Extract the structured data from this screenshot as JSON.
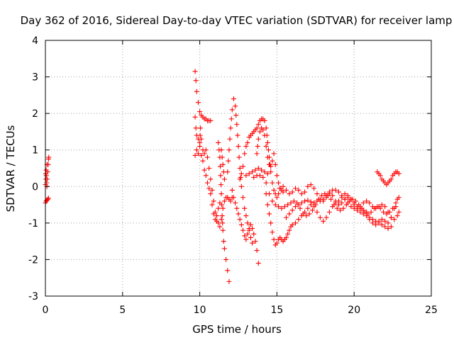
{
  "chart_data": {
    "type": "scatter",
    "title": "Day 362 of 2016, Sidereal Day-to-day VTEC variation (SDTVAR) for receiver lamp",
    "xlabel": "GPS time / hours",
    "ylabel": "SDTVAR / TECUs",
    "xlim": [
      0,
      25
    ],
    "ylim": [
      -3,
      4
    ],
    "xticks": [
      "0",
      "5",
      "10",
      "15",
      "20",
      "25"
    ],
    "yticks": [
      "-3",
      "-2",
      "-1",
      "0",
      "1",
      "2",
      "3",
      "4"
    ],
    "grid": true,
    "marker": "plus",
    "color": "#ff0000",
    "segments": [
      [
        [
          0.0,
          -0.45
        ],
        [
          0.05,
          -0.4
        ],
        [
          0.1,
          -0.38
        ],
        [
          0.15,
          -0.35
        ],
        [
          0.2,
          -0.32
        ]
      ],
      [
        [
          0.0,
          0.05
        ],
        [
          0.03,
          0.2
        ],
        [
          0.06,
          0.3
        ],
        [
          0.08,
          0.1
        ],
        [
          0.1,
          0.0
        ],
        [
          0.12,
          0.2
        ],
        [
          0.15,
          0.4
        ],
        [
          0.18,
          0.6
        ],
        [
          0.2,
          0.75
        ],
        [
          0.22,
          0.8
        ],
        [
          0.1,
          0.6
        ],
        [
          0.05,
          0.45
        ],
        [
          0.02,
          0.35
        ]
      ],
      [
        [
          9.7,
          3.15
        ],
        [
          9.75,
          2.9
        ],
        [
          9.8,
          2.6
        ],
        [
          9.9,
          2.3
        ],
        [
          10.0,
          2.05
        ],
        [
          10.1,
          1.95
        ],
        [
          10.2,
          1.9
        ],
        [
          10.3,
          1.85
        ],
        [
          10.4,
          1.85
        ],
        [
          10.5,
          1.8
        ],
        [
          10.6,
          1.8
        ],
        [
          10.7,
          1.8
        ]
      ],
      [
        [
          9.7,
          1.9
        ],
        [
          9.75,
          1.6
        ],
        [
          9.8,
          1.4
        ],
        [
          9.9,
          1.3
        ],
        [
          10.0,
          1.2
        ],
        [
          10.05,
          1.6
        ],
        [
          10.1,
          1.3
        ],
        [
          10.2,
          1.0
        ],
        [
          10.3,
          0.9
        ],
        [
          10.4,
          1.0
        ],
        [
          10.5,
          0.8
        ],
        [
          10.6,
          0.5
        ],
        [
          10.7,
          0.2
        ],
        [
          10.8,
          -0.1
        ],
        [
          10.9,
          -0.4
        ],
        [
          11.0,
          -0.7
        ],
        [
          11.1,
          -0.95
        ],
        [
          11.2,
          -1.0
        ],
        [
          11.3,
          -1.1
        ],
        [
          11.4,
          -0.9
        ],
        [
          11.5,
          -0.6
        ],
        [
          11.6,
          -0.4
        ],
        [
          11.7,
          -0.3
        ],
        [
          11.8,
          -0.3
        ],
        [
          11.9,
          -0.35
        ],
        [
          12.0,
          -0.4
        ],
        [
          12.1,
          -0.3
        ]
      ],
      [
        [
          9.7,
          0.85
        ],
        [
          9.8,
          1.0
        ],
        [
          9.9,
          0.9
        ],
        [
          10.0,
          1.1
        ],
        [
          10.1,
          0.85
        ],
        [
          10.2,
          0.7
        ],
        [
          10.3,
          0.45
        ],
        [
          10.4,
          0.3
        ],
        [
          10.5,
          0.1
        ],
        [
          10.6,
          -0.05
        ],
        [
          10.7,
          -0.2
        ],
        [
          10.8,
          -0.5
        ],
        [
          10.9,
          -0.75
        ],
        [
          11.0,
          -0.9
        ],
        [
          11.1,
          -0.8
        ],
        [
          11.2,
          -0.6
        ],
        [
          11.3,
          -0.45
        ]
      ],
      [
        [
          11.2,
          1.2
        ],
        [
          11.3,
          0.8
        ],
        [
          11.35,
          0.3
        ],
        [
          11.4,
          -0.2
        ],
        [
          11.45,
          -0.8
        ],
        [
          11.5,
          -1.2
        ],
        [
          11.55,
          -1.5
        ],
        [
          11.6,
          -1.7
        ],
        [
          11.7,
          -2.0
        ],
        [
          11.8,
          -2.3
        ],
        [
          11.9,
          -2.6
        ]
      ],
      [
        [
          11.4,
          1.0
        ],
        [
          11.5,
          0.6
        ],
        [
          11.6,
          0.2
        ]
      ],
      [
        [
          11.8,
          0.4
        ],
        [
          11.9,
          1.0
        ],
        [
          12.0,
          1.6
        ],
        [
          12.1,
          2.1
        ],
        [
          12.2,
          2.4
        ],
        [
          12.3,
          2.2
        ],
        [
          12.4,
          1.7
        ],
        [
          12.5,
          1.1
        ],
        [
          12.6,
          0.5
        ],
        [
          12.7,
          0.0
        ],
        [
          12.8,
          -0.3
        ],
        [
          12.9,
          -0.6
        ],
        [
          13.0,
          -0.8
        ],
        [
          13.1,
          -1.0
        ],
        [
          13.2,
          -1.2
        ],
        [
          13.3,
          -1.4
        ],
        [
          13.4,
          -1.55
        ]
      ],
      [
        [
          12.1,
          -0.1
        ],
        [
          12.2,
          -0.3
        ],
        [
          12.3,
          -0.45
        ],
        [
          12.4,
          -0.6
        ],
        [
          12.5,
          -0.75
        ],
        [
          12.6,
          -0.9
        ],
        [
          12.7,
          -1.05
        ],
        [
          12.8,
          -1.2
        ],
        [
          12.9,
          -1.35
        ],
        [
          13.0,
          -1.45
        ],
        [
          13.1,
          -1.3
        ],
        [
          13.2,
          -1.15
        ],
        [
          13.3,
          -1.05
        ],
        [
          13.4,
          -1.15
        ],
        [
          13.5,
          -1.3
        ],
        [
          13.6,
          -1.5
        ],
        [
          13.7,
          -1.75
        ],
        [
          13.8,
          -2.1
        ]
      ],
      [
        [
          12.6,
          0.2
        ],
        [
          12.7,
          0.35
        ],
        [
          12.8,
          0.55
        ],
        [
          12.9,
          0.9
        ],
        [
          13.0,
          1.1
        ],
        [
          13.1,
          1.2
        ],
        [
          13.2,
          1.35
        ],
        [
          13.3,
          1.4
        ],
        [
          13.4,
          1.45
        ],
        [
          13.5,
          1.5
        ],
        [
          13.6,
          1.55
        ],
        [
          13.7,
          1.6
        ],
        [
          13.8,
          1.7
        ],
        [
          13.9,
          1.8
        ],
        [
          14.0,
          1.85
        ],
        [
          14.1,
          1.85
        ],
        [
          14.2,
          1.8
        ],
        [
          14.3,
          1.6
        ],
        [
          14.4,
          1.2
        ],
        [
          14.5,
          0.8
        ],
        [
          14.6,
          0.4
        ],
        [
          14.7,
          0.1
        ],
        [
          14.8,
          -0.1
        ],
        [
          14.9,
          -0.2
        ],
        [
          15.0,
          -0.3
        ],
        [
          15.1,
          -0.2
        ],
        [
          15.2,
          -0.05
        ],
        [
          15.3,
          -0.1
        ],
        [
          15.4,
          -0.15
        ]
      ],
      [
        [
          13.0,
          0.3
        ],
        [
          13.2,
          0.35
        ],
        [
          13.4,
          0.4
        ],
        [
          13.6,
          0.45
        ],
        [
          13.8,
          0.5
        ],
        [
          14.0,
          0.45
        ],
        [
          14.2,
          0.4
        ],
        [
          14.4,
          0.35
        ]
      ],
      [
        [
          13.7,
          0.9
        ],
        [
          13.8,
          1.3
        ],
        [
          13.9,
          1.5
        ],
        [
          14.0,
          1.6
        ],
        [
          14.1,
          1.55
        ],
        [
          14.2,
          1.4
        ],
        [
          14.3,
          1.1
        ],
        [
          14.4,
          0.8
        ],
        [
          14.5,
          0.6
        ],
        [
          14.6,
          0.55
        ],
        [
          14.7,
          0.7
        ],
        [
          14.8,
          0.9
        ],
        [
          14.9,
          0.6
        ],
        [
          15.0,
          0.3
        ],
        [
          15.1,
          0.1
        ],
        [
          15.2,
          -0.05
        ]
      ],
      [
        [
          14.3,
          -0.2
        ],
        [
          14.4,
          -0.5
        ],
        [
          14.5,
          -0.75
        ],
        [
          14.6,
          -1.0
        ],
        [
          14.7,
          -1.25
        ],
        [
          14.8,
          -1.45
        ],
        [
          14.9,
          -1.6
        ],
        [
          15.0,
          -1.55
        ],
        [
          15.1,
          -1.45
        ],
        [
          15.2,
          -1.4
        ],
        [
          15.3,
          -1.45
        ],
        [
          15.4,
          -1.5
        ],
        [
          15.5,
          -1.45
        ],
        [
          15.6,
          -1.4
        ],
        [
          15.7,
          -1.3
        ],
        [
          15.8,
          -1.2
        ],
        [
          15.9,
          -1.1
        ],
        [
          16.0,
          -1.05
        ],
        [
          16.2,
          -1.0
        ],
        [
          16.4,
          -0.9
        ],
        [
          16.6,
          -0.8
        ],
        [
          16.8,
          -0.7
        ],
        [
          17.0,
          -0.6
        ],
        [
          17.2,
          -0.5
        ],
        [
          17.4,
          -0.45
        ],
        [
          17.6,
          -0.4
        ],
        [
          17.8,
          -0.4
        ],
        [
          18.0,
          -0.35
        ],
        [
          18.2,
          -0.25
        ],
        [
          18.4,
          -0.15
        ],
        [
          18.6,
          -0.1
        ],
        [
          18.8,
          -0.1
        ],
        [
          19.0,
          -0.15
        ],
        [
          19.2,
          -0.25
        ],
        [
          19.4,
          -0.35
        ],
        [
          19.6,
          -0.45
        ],
        [
          19.8,
          -0.55
        ],
        [
          20.0,
          -0.6
        ],
        [
          20.2,
          -0.65
        ],
        [
          20.4,
          -0.7
        ],
        [
          20.6,
          -0.75
        ],
        [
          20.8,
          -0.8
        ],
        [
          21.0,
          -0.85
        ],
        [
          21.2,
          -0.9
        ],
        [
          21.4,
          -0.95
        ],
        [
          21.6,
          -1.0
        ],
        [
          21.8,
          -1.05
        ],
        [
          22.0,
          -1.1
        ],
        [
          22.2,
          -1.15
        ],
        [
          22.4,
          -1.1
        ]
      ],
      [
        [
          13.5,
          0.25
        ],
        [
          13.7,
          0.3
        ],
        [
          13.9,
          0.3
        ],
        [
          14.1,
          0.25
        ],
        [
          14.3,
          0.1
        ],
        [
          14.5,
          -0.2
        ],
        [
          14.7,
          -0.4
        ],
        [
          14.9,
          -0.5
        ],
        [
          15.1,
          -0.55
        ],
        [
          15.3,
          -0.6
        ],
        [
          15.5,
          -0.55
        ],
        [
          15.7,
          -0.5
        ],
        [
          15.9,
          -0.45
        ],
        [
          16.1,
          -0.4
        ],
        [
          16.3,
          -0.45
        ],
        [
          16.5,
          -0.6
        ],
        [
          16.7,
          -0.75
        ],
        [
          16.9,
          -0.8
        ],
        [
          17.1,
          -0.75
        ],
        [
          17.3,
          -0.65
        ],
        [
          17.5,
          -0.5
        ],
        [
          17.7,
          -0.35
        ],
        [
          17.9,
          -0.25
        ],
        [
          18.1,
          -0.2
        ],
        [
          18.3,
          -0.25
        ],
        [
          18.5,
          -0.35
        ],
        [
          18.7,
          -0.5
        ],
        [
          18.9,
          -0.6
        ],
        [
          19.1,
          -0.65
        ],
        [
          19.3,
          -0.6
        ],
        [
          19.5,
          -0.5
        ],
        [
          19.7,
          -0.4
        ],
        [
          19.9,
          -0.35
        ],
        [
          20.1,
          -0.4
        ],
        [
          20.3,
          -0.5
        ],
        [
          20.5,
          -0.6
        ],
        [
          20.7,
          -0.7
        ],
        [
          20.9,
          -0.75
        ],
        [
          21.1,
          -0.7
        ],
        [
          21.3,
          -0.6
        ],
        [
          21.5,
          -0.55
        ],
        [
          21.7,
          -0.6
        ],
        [
          21.9,
          -0.7
        ],
        [
          22.1,
          -0.75
        ],
        [
          22.3,
          -0.7
        ],
        [
          22.5,
          -0.6
        ],
        [
          22.7,
          -0.55
        ]
      ],
      [
        [
          15.2,
          -0.05
        ],
        [
          15.4,
          0.0
        ],
        [
          15.6,
          -0.1
        ],
        [
          15.8,
          -0.2
        ],
        [
          16.0,
          -0.15
        ],
        [
          16.2,
          -0.05
        ],
        [
          16.4,
          -0.1
        ],
        [
          16.6,
          -0.2
        ],
        [
          16.8,
          -0.15
        ],
        [
          17.0,
          0.0
        ],
        [
          17.2,
          0.05
        ],
        [
          17.4,
          -0.05
        ],
        [
          17.6,
          -0.2
        ],
        [
          17.8,
          -0.35
        ],
        [
          18.0,
          -0.4
        ],
        [
          18.2,
          -0.3
        ],
        [
          18.4,
          -0.2
        ],
        [
          18.6,
          -0.25
        ],
        [
          18.8,
          -0.4
        ],
        [
          19.0,
          -0.5
        ],
        [
          19.2,
          -0.45
        ],
        [
          19.4,
          -0.35
        ],
        [
          19.6,
          -0.3
        ],
        [
          19.8,
          -0.35
        ],
        [
          20.0,
          -0.5
        ],
        [
          20.2,
          -0.6
        ],
        [
          20.4,
          -0.55
        ],
        [
          20.6,
          -0.45
        ],
        [
          20.8,
          -0.4
        ],
        [
          21.0,
          -0.45
        ],
        [
          21.2,
          -0.55
        ],
        [
          21.4,
          -0.6
        ],
        [
          21.6,
          -0.55
        ],
        [
          21.8,
          -0.5
        ],
        [
          22.0,
          -0.55
        ],
        [
          22.2,
          -0.7
        ],
        [
          22.4,
          -0.85
        ],
        [
          22.6,
          -0.9
        ],
        [
          22.8,
          -0.8
        ],
        [
          22.9,
          -0.7
        ]
      ],
      [
        [
          15.6,
          -0.85
        ],
        [
          15.8,
          -0.75
        ],
        [
          16.0,
          -0.65
        ],
        [
          16.2,
          -0.55
        ],
        [
          16.4,
          -0.5
        ],
        [
          16.6,
          -0.45
        ],
        [
          16.8,
          -0.4
        ],
        [
          17.0,
          -0.38
        ],
        [
          17.2,
          -0.42
        ],
        [
          17.4,
          -0.55
        ],
        [
          17.6,
          -0.7
        ],
        [
          17.8,
          -0.85
        ],
        [
          18.0,
          -0.95
        ],
        [
          18.2,
          -0.85
        ],
        [
          18.4,
          -0.7
        ],
        [
          18.6,
          -0.55
        ],
        [
          18.8,
          -0.45
        ],
        [
          19.0,
          -0.4
        ],
        [
          19.2,
          -0.3
        ],
        [
          19.4,
          -0.2
        ],
        [
          19.6,
          -0.25
        ],
        [
          19.8,
          -0.35
        ],
        [
          20.0,
          -0.45
        ],
        [
          20.2,
          -0.55
        ],
        [
          20.4,
          -0.6
        ],
        [
          20.6,
          -0.65
        ],
        [
          20.8,
          -0.7
        ],
        [
          21.0,
          -0.9
        ],
        [
          21.2,
          -1.0
        ],
        [
          21.4,
          -1.05
        ],
        [
          21.6,
          -0.95
        ],
        [
          21.8,
          -0.9
        ],
        [
          22.0,
          -0.95
        ],
        [
          22.2,
          -1.0
        ],
        [
          22.4,
          -0.85
        ],
        [
          22.6,
          -0.6
        ],
        [
          22.7,
          -0.45
        ],
        [
          22.8,
          -0.35
        ],
        [
          22.9,
          -0.3
        ]
      ],
      [
        [
          21.5,
          0.4
        ],
        [
          21.6,
          0.35
        ],
        [
          21.7,
          0.3
        ],
        [
          21.8,
          0.2
        ],
        [
          21.9,
          0.15
        ],
        [
          22.0,
          0.1
        ],
        [
          22.1,
          0.05
        ],
        [
          22.2,
          0.1
        ],
        [
          22.3,
          0.15
        ],
        [
          22.4,
          0.2
        ],
        [
          22.5,
          0.3
        ],
        [
          22.6,
          0.35
        ],
        [
          22.7,
          0.4
        ],
        [
          22.8,
          0.4
        ],
        [
          22.9,
          0.35
        ]
      ]
    ]
  }
}
